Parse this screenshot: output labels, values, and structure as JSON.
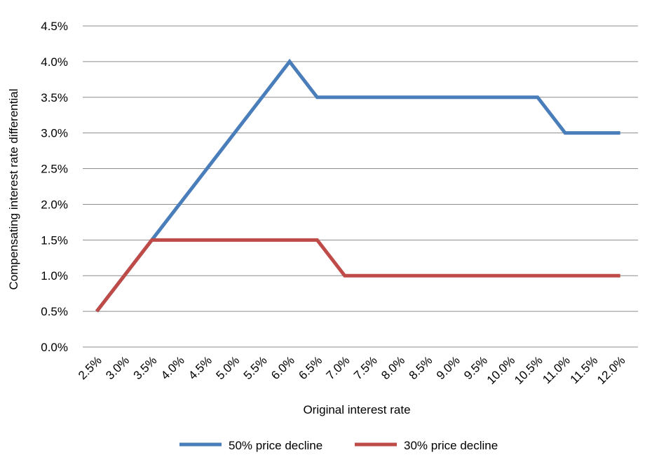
{
  "chart_data": {
    "type": "line",
    "xlabel": "Original interest rate",
    "ylabel": "Compensating interest rate differential",
    "categories": [
      "2.5%",
      "3.0%",
      "3.5%",
      "4.0%",
      "4.5%",
      "5.0%",
      "5.5%",
      "6.0%",
      "6.5%",
      "7.0%",
      "7.5%",
      "8.0%",
      "8.5%",
      "9.0%",
      "9.5%",
      "10.0%",
      "10.5%",
      "11.0%",
      "11.5%",
      "12.0%"
    ],
    "y_ticks": [
      "0.0%",
      "0.5%",
      "1.0%",
      "1.5%",
      "2.0%",
      "2.5%",
      "3.0%",
      "3.5%",
      "4.0%",
      "4.5%"
    ],
    "ylim": [
      0,
      4.5
    ],
    "y_unit": "%",
    "grid": true,
    "legend_position": "bottom",
    "series": [
      {
        "name": "50% price decline",
        "color": "#4a7ebb",
        "values": [
          0.5,
          1.0,
          1.5,
          2.0,
          2.5,
          3.0,
          3.5,
          4.0,
          3.5,
          3.5,
          3.5,
          3.5,
          3.5,
          3.5,
          3.5,
          3.5,
          3.5,
          3.0,
          3.0,
          3.0
        ]
      },
      {
        "name": "30% price decline",
        "color": "#be4b48",
        "values": [
          0.5,
          1.0,
          1.5,
          1.5,
          1.5,
          1.5,
          1.5,
          1.5,
          1.5,
          1.0,
          1.0,
          1.0,
          1.0,
          1.0,
          1.0,
          1.0,
          1.0,
          1.0,
          1.0,
          1.0
        ]
      }
    ]
  }
}
